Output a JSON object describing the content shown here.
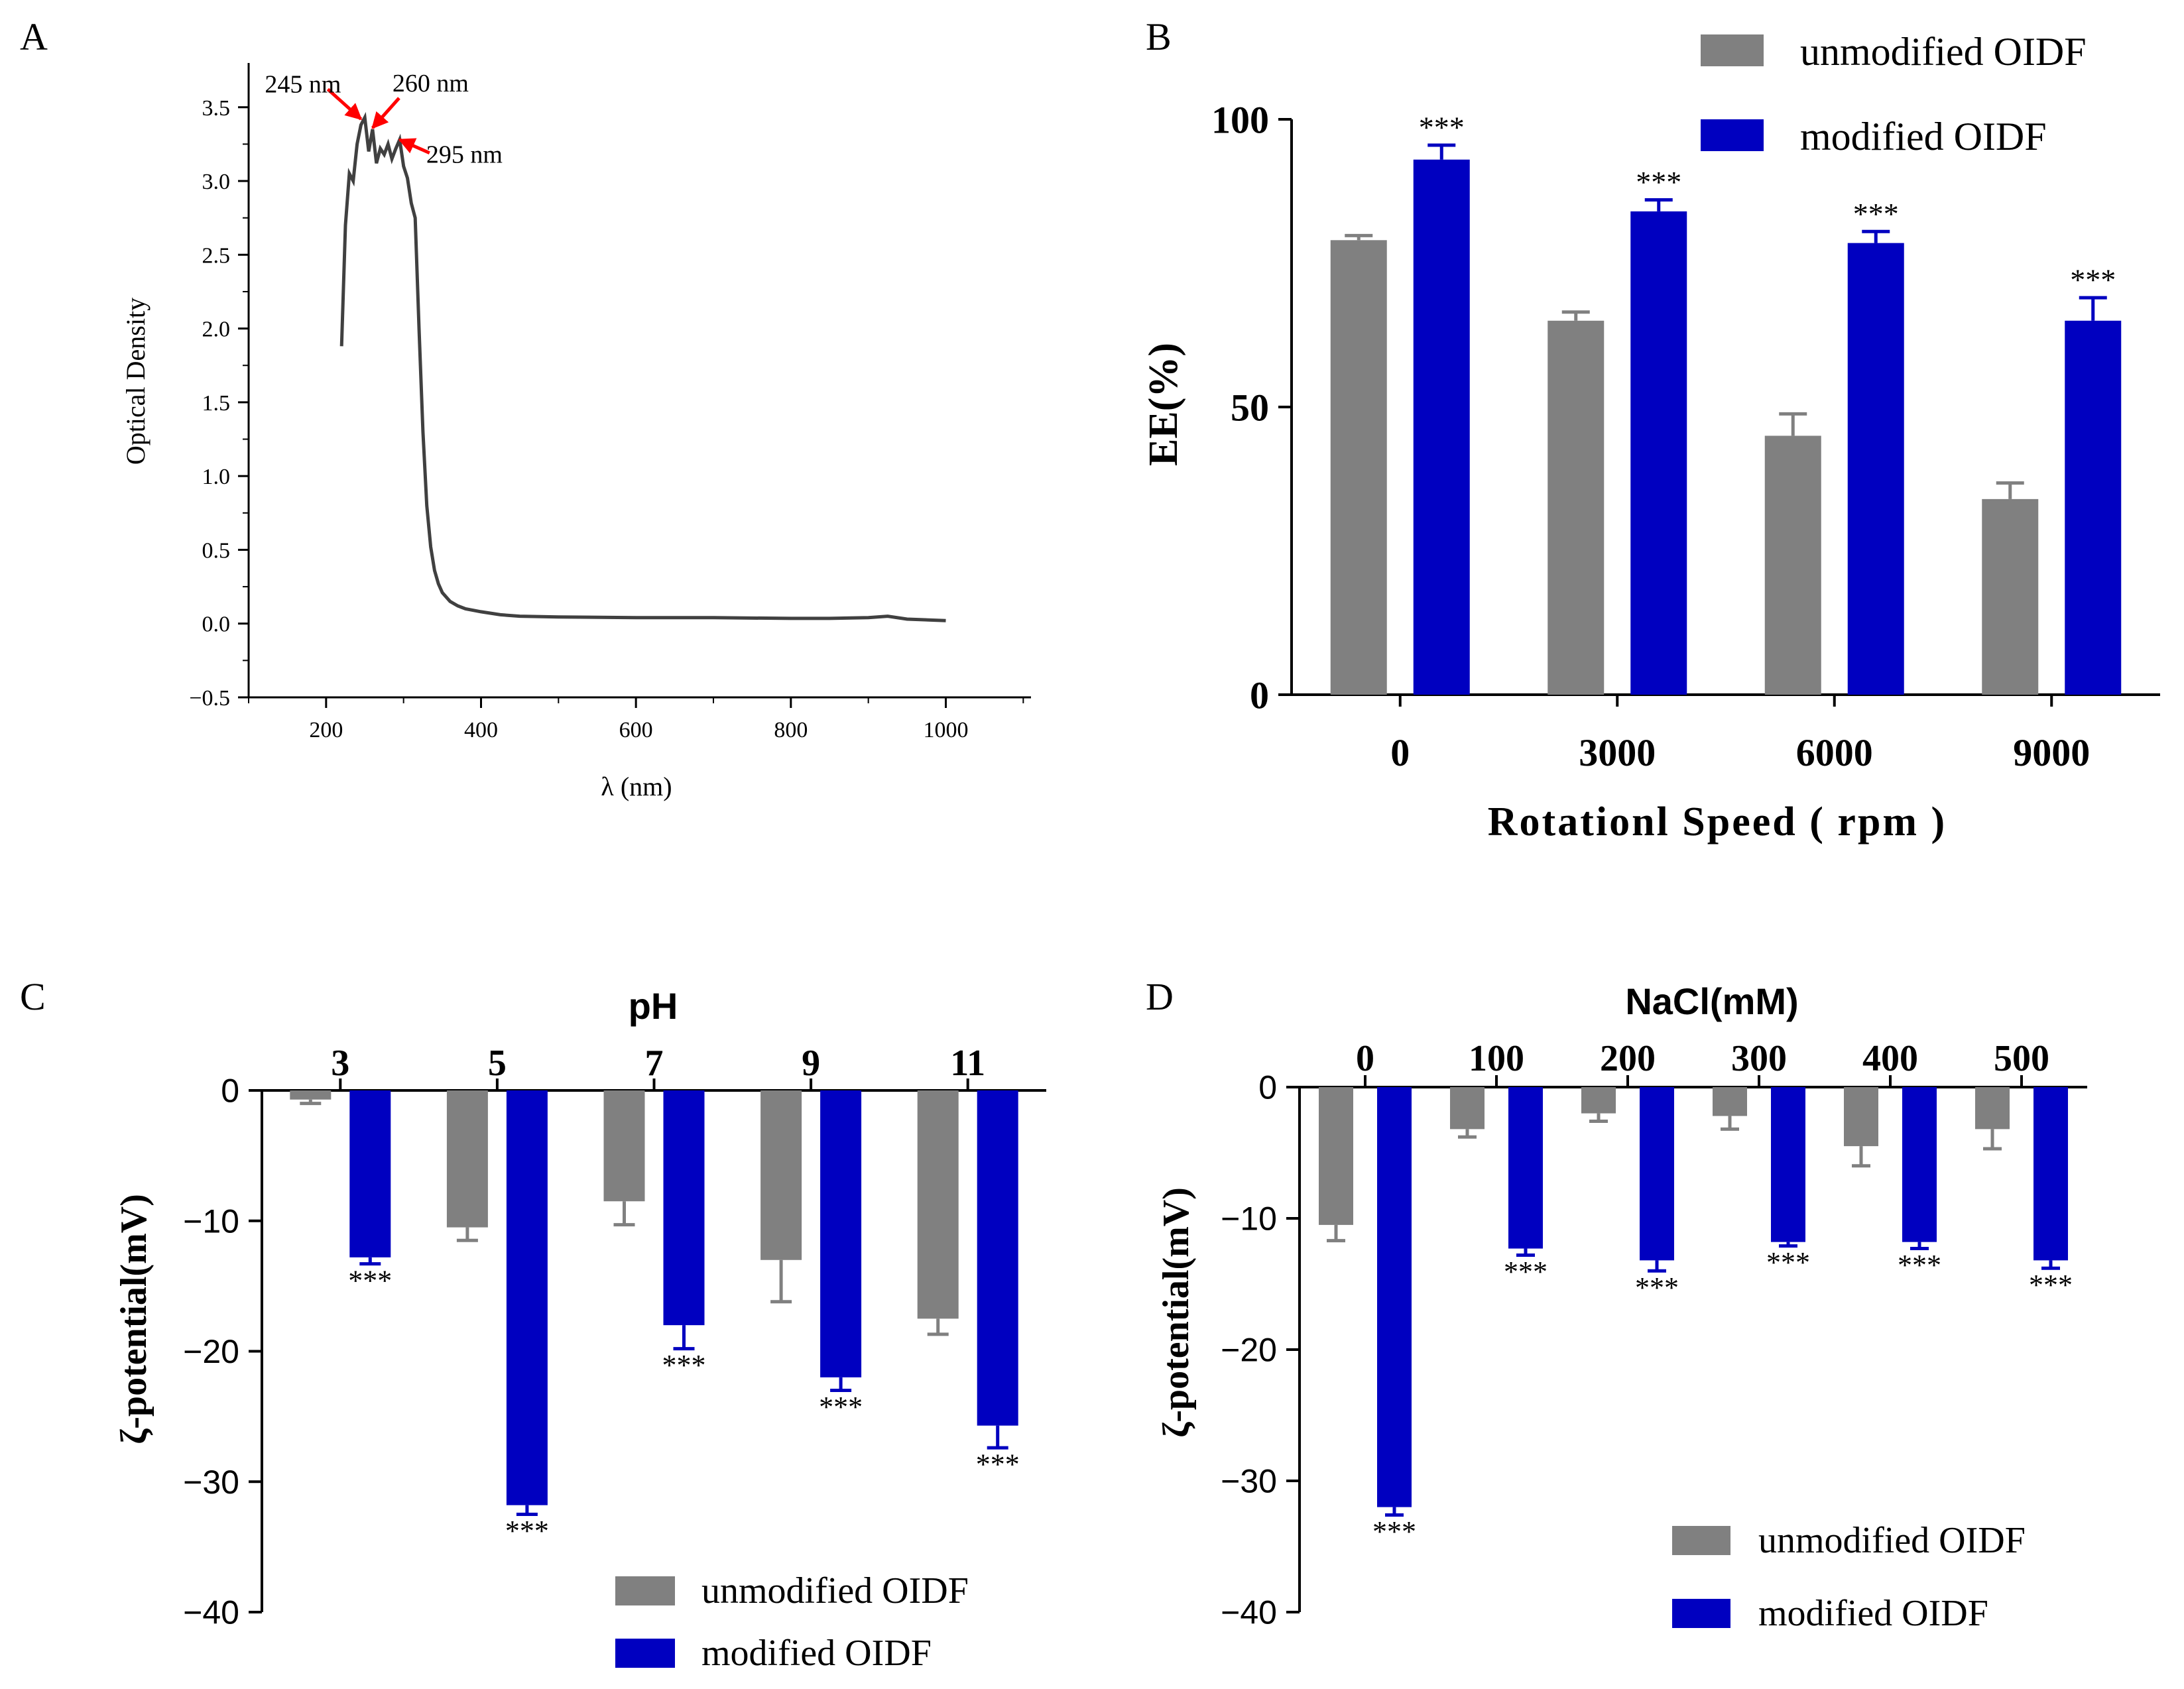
{
  "colors": {
    "gray": "#808080",
    "blue": "#0000c0",
    "axis": "#000000",
    "line": "#404040",
    "arrow": "#ff0000"
  },
  "chart_data": [
    {
      "panel": "A",
      "type": "line",
      "title": "",
      "xlabel": "λ (nm)",
      "ylabel": "Optical Density",
      "xlim": [
        100,
        1110
      ],
      "ylim": [
        -0.5,
        3.8
      ],
      "xticks": [
        200,
        400,
        600,
        800,
        1000
      ],
      "yticks": [
        -0.5,
        0.0,
        0.5,
        1.0,
        1.5,
        2.0,
        2.5,
        3.0,
        3.5
      ],
      "ytick_labels": [
        "−0.5",
        "0.0",
        "0.5",
        "1.0",
        "1.5",
        "2.0",
        "2.5",
        "3.0",
        "3.5"
      ],
      "annotations": [
        {
          "text": "245 nm",
          "x": 245,
          "y": 3.42
        },
        {
          "text": "260 nm",
          "x": 260,
          "y": 3.36
        },
        {
          "text": "295 nm",
          "x": 295,
          "y": 3.28
        }
      ],
      "series": [
        {
          "name": "spectrum",
          "x": [
            220,
            225,
            230,
            235,
            240,
            245,
            250,
            255,
            260,
            265,
            270,
            275,
            280,
            285,
            290,
            295,
            300,
            305,
            310,
            315,
            320,
            325,
            330,
            335,
            340,
            345,
            350,
            360,
            370,
            380,
            390,
            400,
            425,
            450,
            500,
            600,
            700,
            800,
            850,
            900,
            925,
            950,
            1000
          ],
          "y": [
            1.88,
            2.7,
            3.05,
            3.0,
            3.25,
            3.38,
            3.43,
            3.2,
            3.35,
            3.12,
            3.22,
            3.18,
            3.25,
            3.15,
            3.22,
            3.28,
            3.1,
            3.02,
            2.85,
            2.75,
            2.0,
            1.3,
            0.8,
            0.52,
            0.36,
            0.27,
            0.21,
            0.15,
            0.12,
            0.1,
            0.09,
            0.08,
            0.06,
            0.05,
            0.045,
            0.04,
            0.04,
            0.035,
            0.035,
            0.04,
            0.05,
            0.03,
            0.02
          ]
        }
      ]
    },
    {
      "panel": "B",
      "type": "bar",
      "xlabel": "Rotationl Speed ( rpm )",
      "ylabel": "EE(%)",
      "ylim": [
        0,
        100
      ],
      "yticks": [
        0,
        50,
        100
      ],
      "categories": [
        "0",
        "3000",
        "6000",
        "9000"
      ],
      "series": [
        {
          "name": "unmodified OIDF",
          "values": [
            79,
            65,
            45,
            34
          ],
          "errors": [
            0.8,
            1.5,
            3.8,
            2.8
          ]
        },
        {
          "name": "modified OIDF",
          "values": [
            93,
            84,
            78.5,
            65
          ],
          "errors": [
            2.5,
            2.0,
            2.0,
            4.0
          ]
        }
      ],
      "significance": [
        "***",
        "***",
        "***",
        "***"
      ]
    },
    {
      "panel": "C",
      "type": "bar",
      "xlabel": "pH",
      "ylabel": "ζ-potential(mV)",
      "ylim": [
        -40,
        0
      ],
      "yticks": [
        0,
        -10,
        -20,
        -30,
        -40
      ],
      "ytick_labels": [
        "0",
        "−10",
        "−20",
        "−30",
        "−40"
      ],
      "categories": [
        "3",
        "5",
        "7",
        "9",
        "11"
      ],
      "series": [
        {
          "name": "unmodified OIDF",
          "values": [
            -0.7,
            -10.5,
            -8.5,
            -13,
            -17.5
          ],
          "errors": [
            0.3,
            1.0,
            1.8,
            3.2,
            1.2
          ]
        },
        {
          "name": "modified OIDF",
          "values": [
            -12.8,
            -31.8,
            -18,
            -22,
            -25.7
          ],
          "errors": [
            0.5,
            0.7,
            1.8,
            1.0,
            1.7
          ]
        }
      ],
      "significance": [
        "***",
        "***",
        "***",
        "***",
        "***"
      ]
    },
    {
      "panel": "D",
      "type": "bar",
      "xlabel": "NaCl(mM)",
      "ylabel": "ζ-potential(mV)",
      "ylim": [
        -40,
        0
      ],
      "yticks": [
        0,
        -10,
        -20,
        -30,
        -40
      ],
      "ytick_labels": [
        "0",
        "−10",
        "−20",
        "−30",
        "−40"
      ],
      "categories": [
        "0",
        "100",
        "200",
        "300",
        "400",
        "500"
      ],
      "series": [
        {
          "name": "unmodified OIDF",
          "values": [
            -10.5,
            -3.2,
            -2,
            -2.2,
            -4.5,
            -3.2
          ],
          "errors": [
            1.2,
            0.6,
            0.6,
            1.0,
            1.5,
            1.5
          ]
        },
        {
          "name": "modified OIDF",
          "values": [
            -32,
            -12.3,
            -13.2,
            -11.8,
            -11.8,
            -13.2
          ],
          "errors": [
            0.6,
            0.5,
            0.8,
            0.3,
            0.5,
            0.6
          ]
        }
      ],
      "significance": [
        "***",
        "***",
        "***",
        "***",
        "***",
        "***"
      ]
    }
  ]
}
